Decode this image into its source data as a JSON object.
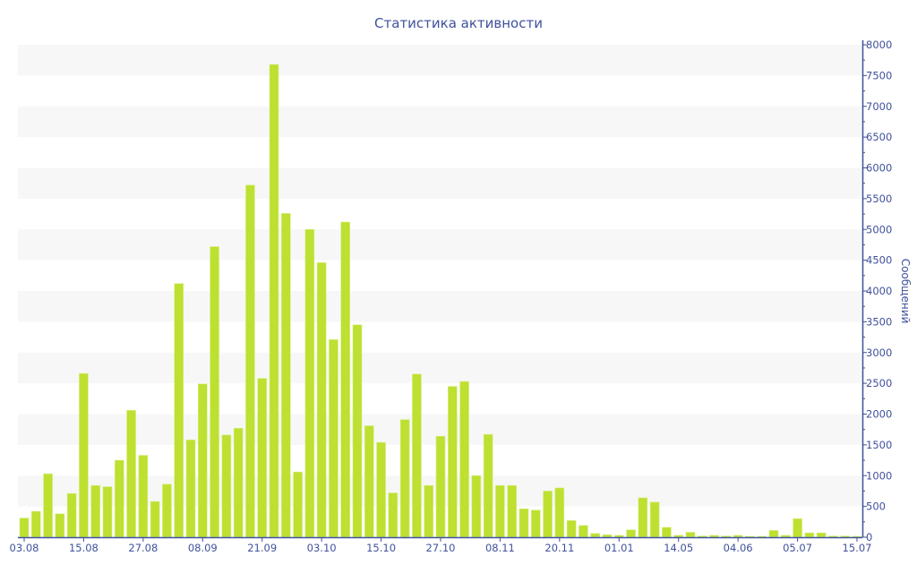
{
  "chart_data": {
    "type": "bar",
    "title": "Статистика активности",
    "ylabel": "Сообщений",
    "xlabel": "",
    "ylim": [
      0,
      8000
    ],
    "y_ticks": [
      0,
      500,
      1000,
      1500,
      2000,
      2500,
      3000,
      3500,
      4000,
      4500,
      5000,
      5500,
      6000,
      6500,
      7000,
      7500,
      8000
    ],
    "x_tick_labels": [
      "03.08",
      "15.08",
      "27.08",
      "08.09",
      "21.09",
      "03.10",
      "15.10",
      "27.10",
      "08.11",
      "20.11",
      "01.01",
      "14.05",
      "04.06",
      "05.07",
      "15.07"
    ],
    "x_tick_every": 5,
    "y_axis_side": "right",
    "grid": "alternating horizontal bands",
    "bar_color": "#bde031",
    "axis_color": "#3f519c",
    "values": [
      310,
      420,
      1030,
      380,
      710,
      2660,
      840,
      820,
      1250,
      2060,
      1330,
      580,
      860,
      4120,
      1580,
      2490,
      4720,
      1660,
      1770,
      5720,
      2580,
      7680,
      5260,
      1060,
      5000,
      4460,
      3210,
      5120,
      3450,
      1810,
      1540,
      720,
      1910,
      2650,
      840,
      1640,
      2450,
      2530,
      1000,
      1670,
      840,
      840,
      460,
      440,
      750,
      800,
      270,
      190,
      60,
      40,
      30,
      120,
      640,
      570,
      160,
      30,
      80,
      20,
      30,
      20,
      30,
      15,
      15,
      110,
      30,
      300,
      70,
      70,
      20,
      20,
      15
    ]
  }
}
